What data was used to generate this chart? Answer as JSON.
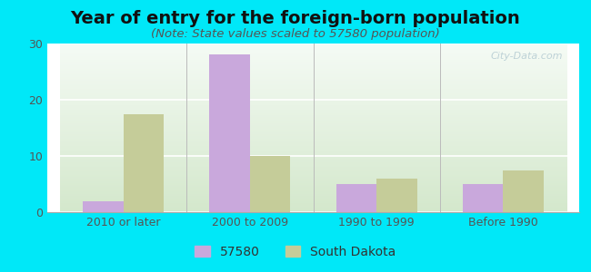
{
  "title": "Year of entry for the foreign-born population",
  "subtitle": "(Note: State values scaled to 57580 population)",
  "categories": [
    "2010 or later",
    "2000 to 2009",
    "1990 to 1999",
    "Before 1990"
  ],
  "values_57580": [
    2,
    28,
    5,
    5
  ],
  "values_sd": [
    17.5,
    10,
    6,
    7.5
  ],
  "color_57580": "#c9a8dc",
  "color_sd": "#c5cc99",
  "ylim": [
    0,
    30
  ],
  "yticks": [
    0,
    10,
    20,
    30
  ],
  "legend_labels": [
    "57580",
    "South Dakota"
  ],
  "bar_width": 0.32,
  "outer_bg": "#00e8f8",
  "title_fontsize": 14,
  "subtitle_fontsize": 9.5,
  "tick_fontsize": 9,
  "legend_fontsize": 10,
  "watermark": "City-Data.com"
}
